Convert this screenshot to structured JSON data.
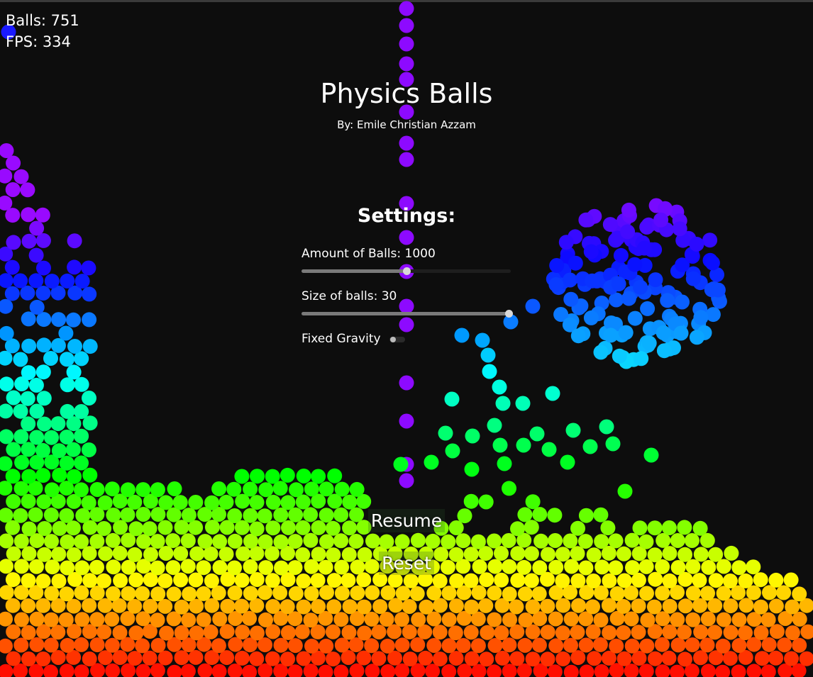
{
  "hud": {
    "balls": "Balls: 751",
    "fps": "FPS: 334"
  },
  "header": {
    "title": "Physics Balls",
    "subtitle": "By: Emile Christian Azzam"
  },
  "settings": {
    "heading": "Settings:",
    "amount_label": "Amount of Balls: 1000",
    "amount_level": 0.5,
    "size_label": "Size of balls: 30",
    "size_level": 0.99,
    "gravity_label": "Fixed Gravity",
    "gravity_on": false
  },
  "buttons": {
    "resume": "Resume",
    "reset": "Reset"
  },
  "colors": {
    "background": "#0d0d0d",
    "spectrum": [
      "#ff1a1a",
      "#ff7a00",
      "#ffe000",
      "#a8ff00",
      "#22dd22",
      "#00ffaa",
      "#00e5ff",
      "#1e90ff",
      "#2a2aff",
      "#7a00ff"
    ]
  }
}
